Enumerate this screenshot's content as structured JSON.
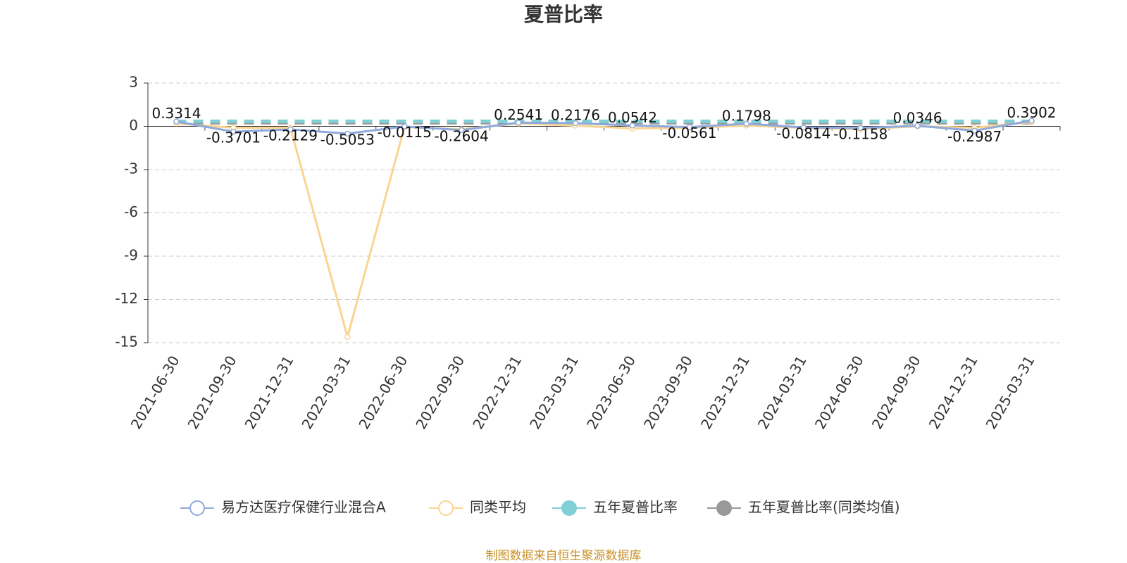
{
  "chart_data": {
    "type": "line",
    "title": "夏普比率",
    "categories": [
      "2021-06-30",
      "2021-09-30",
      "2021-12-31",
      "2022-03-31",
      "2022-06-30",
      "2022-09-30",
      "2022-12-31",
      "2023-03-31",
      "2023-06-30",
      "2023-09-30",
      "2023-12-31",
      "2024-03-31",
      "2024-06-30",
      "2024-09-30",
      "2024-12-31",
      "2025-03-31"
    ],
    "series": [
      {
        "name": "易方达医疗保健行业混合A",
        "color": "#8fa9dc",
        "values": [
          0.3314,
          -0.3701,
          -0.2129,
          -0.5053,
          -0.0115,
          -0.2604,
          0.2541,
          0.2176,
          0.0542,
          -0.0561,
          0.1798,
          -0.0814,
          -0.1158,
          0.0346,
          -0.2987,
          0.3902
        ]
      },
      {
        "name": "同类平均",
        "color": "#fad58f",
        "values": [
          0.2,
          -0.1,
          -0.1,
          -14.6,
          -0.05,
          -0.2,
          0.2,
          0.05,
          -0.15,
          -0.1,
          0.05,
          -0.1,
          -0.2,
          0.0,
          -0.1,
          0.3
        ]
      },
      {
        "name": "五年夏普比率",
        "color": "#7fcfd4",
        "values": [
          0.35,
          0.35,
          0.35,
          0.35,
          0.35,
          0.35,
          0.35,
          0.35,
          0.35,
          0.35,
          0.35,
          0.35,
          0.35,
          0.35,
          0.35,
          0.35
        ]
      },
      {
        "name": "五年夏普比率(同类均值)",
        "color": "#999999",
        "values": [
          0.25,
          0.25,
          0.25,
          0.25,
          0.25,
          0.25,
          0.25,
          0.25,
          0.25,
          0.25,
          0.25,
          0.25,
          0.25,
          0.25,
          0.25,
          0.25
        ]
      }
    ],
    "ylim": [
      -15,
      3
    ],
    "yticks": [
      -15,
      -12,
      -9,
      -6,
      -3,
      0,
      3
    ],
    "grid": true,
    "source": "制图数据来自恒生聚源数据库"
  }
}
